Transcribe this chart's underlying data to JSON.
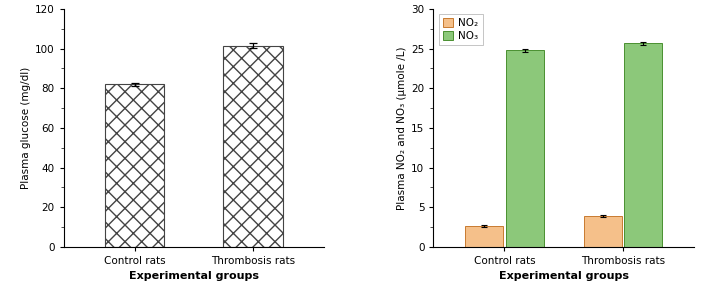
{
  "chart1": {
    "categories": [
      "Control rats",
      "Thrombosis rats"
    ],
    "values": [
      82.0,
      101.5
    ],
    "errors": [
      0.8,
      1.2
    ],
    "ylabel": "Plasma glucose (mg/dl)",
    "xlabel": "Experimental groups",
    "ylim": [
      0,
      120
    ],
    "yticks": [
      0,
      20,
      40,
      60,
      80,
      100,
      120
    ],
    "bar_color": "#ffffff",
    "hatch": "xx",
    "edgecolor": "#444444"
  },
  "chart2": {
    "categories": [
      "Control rats",
      "Thrombosis rats"
    ],
    "no2_values": [
      2.6,
      3.9
    ],
    "no3_values": [
      24.8,
      25.7
    ],
    "no2_errors": [
      0.15,
      0.12
    ],
    "no3_errors": [
      0.18,
      0.18
    ],
    "ylabel": "Plasma NO₂ and NO₃ (μmole /L)",
    "xlabel": "Experimental groups",
    "ylim": [
      0,
      30
    ],
    "yticks": [
      0,
      5,
      10,
      15,
      20,
      25,
      30
    ],
    "no2_color": "#f5c08a",
    "no3_color": "#8cc87a",
    "no2_label": "NO₂",
    "no3_label": "NO₃",
    "no2_edgecolor": "#c87a30",
    "no3_edgecolor": "#4a9030"
  },
  "figsize": [
    7.08,
    3.01
  ],
  "dpi": 100
}
